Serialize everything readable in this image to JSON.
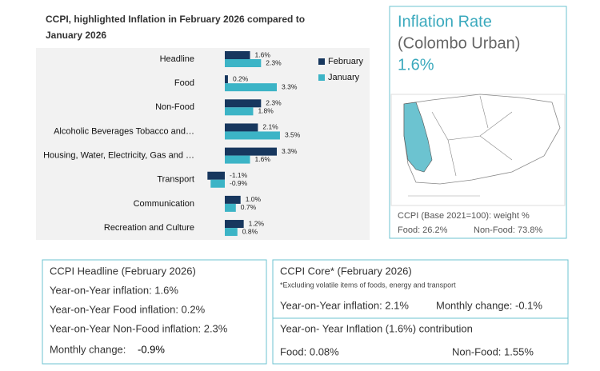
{
  "chart_data": {
    "type": "bar",
    "orientation": "horizontal",
    "title": "CCPI, highlighted Inflation in February 2026 compared to January 2026",
    "categories": [
      "Headline",
      "Food",
      "Non-Food",
      "Alcoholic Beverages Tobacco and…",
      "Housing, Water, Electricity, Gas and …",
      "Transport",
      "Communication",
      "Recreation and Culture"
    ],
    "series": [
      {
        "name": "February",
        "color": "#17375e",
        "values": [
          1.6,
          0.2,
          2.3,
          2.1,
          3.3,
          -1.1,
          1.0,
          1.2
        ],
        "value_labels": [
          "1.6%",
          "0.2%",
          "2.3%",
          "2.1%",
          "3.3%",
          "-1.1%",
          "1.0%",
          "1.2%"
        ]
      },
      {
        "name": "January",
        "color": "#3cb4c6",
        "values": [
          2.3,
          3.3,
          1.8,
          3.5,
          1.6,
          -0.9,
          0.7,
          0.8
        ],
        "value_labels": [
          "2.3%",
          "3.3%",
          "1.8%",
          "3.5%",
          "1.6%",
          "-0.9%",
          "0.7%",
          "0.8%"
        ]
      }
    ],
    "legend": "right"
  },
  "inflation_panel": {
    "title": "Inflation Rate",
    "subtitle": "(Colombo Urban)",
    "value": "1.6%",
    "weights_title": "CCPI (Base 2021=100): weight %",
    "food_weight": "Food: 26.2%",
    "nonfood_weight": "Non-Food: 73.8%"
  },
  "headline_box": {
    "title": "CCPI Headline (February 2026)",
    "lines": [
      "Year-on-Year inflation: 1.6%",
      "Year-on-Year Food inflation: 0.2%",
      "Year-on-Year Non-Food inflation: 2.3%"
    ],
    "monthly_label": "Monthly change:",
    "monthly_value": "-0.9%"
  },
  "core_box": {
    "title": "CCPI Core* (February 2026)",
    "note": "*Excluding volatile items of foods, energy and transport",
    "yoy": "Year-on-Year inflation: 2.1%",
    "monthly": "Monthly change:  -0.1%"
  },
  "contribution_box": {
    "title": "Year-on- Year Inflation (1.6%) contribution",
    "food": "Food: 0.08%",
    "nonfood": "Non-Food: 1.55%"
  }
}
